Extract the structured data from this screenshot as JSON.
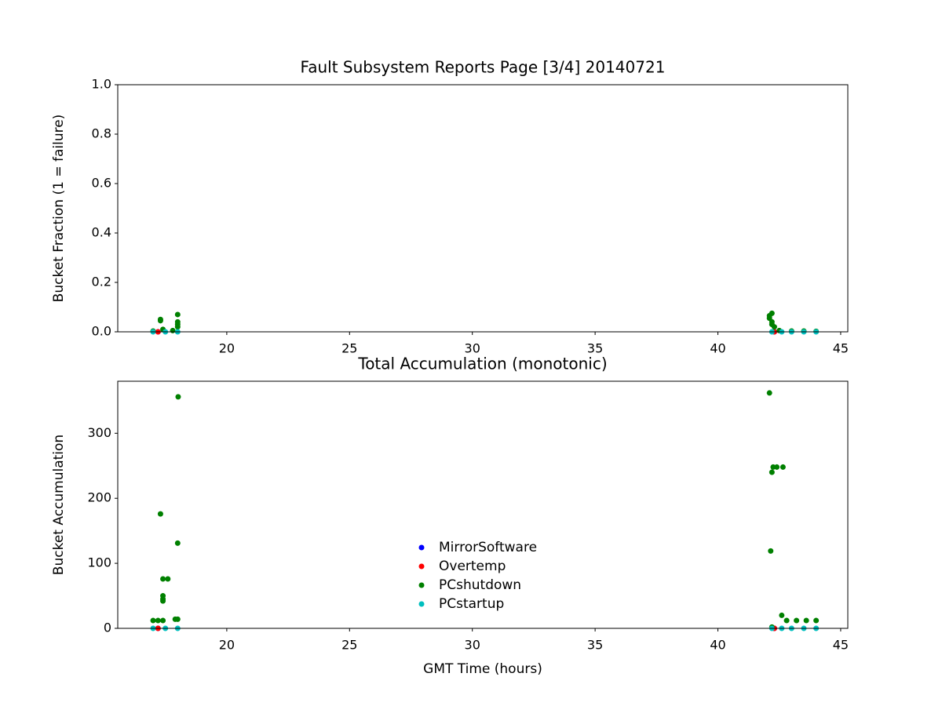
{
  "chart_data": [
    {
      "type": "scatter",
      "title": "Fault Subsystem Reports Page [3/4] 20140721",
      "y_label": "Bucket Fraction (1 = failure)",
      "xlim": [
        15.56,
        45.29
      ],
      "xticks": [
        20,
        25,
        30,
        35,
        40,
        45
      ],
      "ylim": [
        0,
        1
      ],
      "yticks": [
        {
          "value": 0,
          "label": "0.0"
        },
        0.2,
        0.4,
        0.6,
        0.8,
        {
          "value": 1,
          "label": "1.0"
        }
      ],
      "series": [
        {
          "color": "#0000ff",
          "x": [
            17.2,
            42.3
          ],
          "values": [
            0,
            0
          ]
        },
        {
          "color": "#ff0000",
          "x": [
            17.2,
            42.3
          ],
          "values": [
            0,
            0
          ]
        },
        {
          "color": "#008000",
          "x": [
            17.3,
            17.3,
            17.4,
            18.0,
            18.0,
            18.0,
            18.0,
            17.0,
            17.8,
            42.1,
            42.1,
            42.2,
            42.2,
            42.2,
            42.3,
            42.5,
            43.0,
            43.5,
            44.0
          ],
          "values": [
            0.05,
            0.045,
            0.01,
            0.07,
            0.04,
            0.03,
            0.02,
            0.003,
            0.005,
            0.065,
            0.055,
            0.075,
            0.04,
            0.03,
            0.02,
            0.005,
            0.003,
            0.003,
            0.002
          ]
        },
        {
          "color": "#00bfbf",
          "x": [
            17.0,
            17.5,
            18.0,
            42.2,
            42.6,
            43.0,
            43.5,
            44.0
          ],
          "values": [
            0,
            0,
            0,
            0,
            0,
            0,
            0,
            0
          ]
        }
      ]
    },
    {
      "type": "scatter",
      "title": "Total Accumulation (monotonic)",
      "x_label": "GMT Time (hours)",
      "y_label": "Bucket Accumulation",
      "xlim": [
        15.56,
        45.29
      ],
      "xticks": [
        20,
        25,
        30,
        35,
        40,
        45
      ],
      "ylim": [
        0,
        380
      ],
      "yticks": [
        0,
        100,
        200,
        300
      ],
      "legend": "lower center",
      "series": [
        {
          "name": "MirrorSoftware",
          "color": "#0000ff",
          "x": [
            17.2,
            42.3
          ],
          "values": [
            0,
            0
          ]
        },
        {
          "name": "Overtemp",
          "color": "#ff0000",
          "x": [
            17.2,
            42.3
          ],
          "values": [
            0,
            0
          ]
        },
        {
          "name": "PCshutdown",
          "color": "#008000",
          "x": [
            18.02,
            17.3,
            18.0,
            17.4,
            17.6,
            17.4,
            17.4,
            17.4,
            17.0,
            17.2,
            17.4,
            17.9,
            18.0,
            42.1,
            42.25,
            42.4,
            42.65,
            42.2,
            42.15,
            42.6,
            42.8,
            43.2,
            43.6,
            44.0,
            42.2
          ],
          "values": [
            356,
            176,
            131,
            76,
            76,
            50,
            45,
            42,
            12,
            12,
            12,
            14,
            14,
            362,
            248,
            248,
            248,
            240,
            119,
            20,
            12,
            12,
            12,
            12,
            2
          ]
        },
        {
          "name": "PCstartup",
          "color": "#00bfbf",
          "x": [
            17.0,
            17.5,
            18.0,
            42.2,
            42.6,
            43.0,
            43.5,
            44.0
          ],
          "values": [
            0,
            0,
            0,
            0,
            0,
            0,
            0,
            0
          ]
        }
      ]
    }
  ]
}
